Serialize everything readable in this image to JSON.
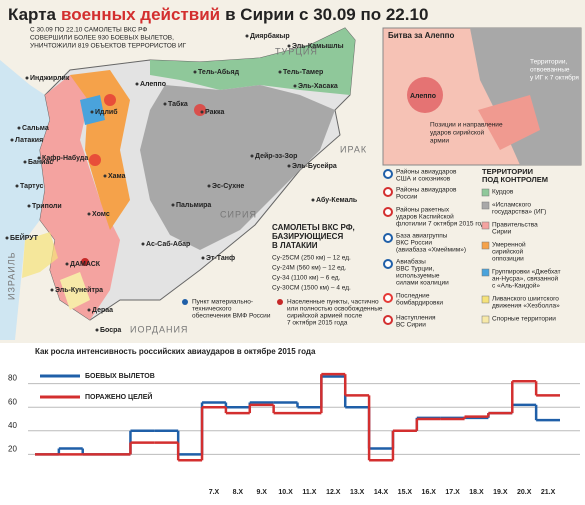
{
  "header": {
    "title_start": "Карта",
    "title_highlight": "военных действий",
    "title_end": "в Сирии с 30.09 по 22.10",
    "summary": [
      "С 30.09 ПО 22.10 САМОЛЕТЫ ВКС РФ",
      "СОВЕРШИЛИ БОЛЕЕ 930 БОЕВЫХ ВЫЛЕТОВ,",
      "УНИЧТОЖИЛИ 819 ОБЪЕКТОВ ТЕРРОРИСТОВ ИГ"
    ]
  },
  "map": {
    "countries": [
      "ТУРЦИЯ",
      "ИРАК",
      "СИРИЯ",
      "ИОРДАНИЯ",
      "ИЗРАИЛЬ"
    ],
    "cities": [
      "Инджирлик",
      "Диярбакыр",
      "Эль-Камышлы",
      "Тель-Абьяд",
      "Тель-Тамер",
      "Эль-Хасака",
      "Ракка",
      "Табка",
      "Алеппо",
      "Идлиб",
      "Латакия",
      "Сальма",
      "Кафр-Набуда",
      "Баниас",
      "Тартус",
      "Триполи",
      "Хама",
      "Хомс",
      "Пальмира",
      "Эс-Сухне",
      "Дейр-эз-Зор",
      "Эль-Бусейра",
      "Абу-Кемаль",
      "Ас-Саб-Абар",
      "Эт-Танф",
      "ДАМАСК",
      "БЕЙРУТ",
      "Эль-Кунейтра",
      "Дераа",
      "Босра"
    ]
  },
  "aleppo_inset": {
    "title": "Битва за Алеппо",
    "city": "Алеппо",
    "regained": [
      "Территории,",
      "отвоеванные",
      "у ИГ к 7 октября"
    ],
    "army": [
      "Позиции и направление",
      "ударов сирийской",
      "армии"
    ]
  },
  "aircraft": {
    "title": [
      "САМОЛЕТЫ ВКС РФ,",
      "БАЗИРУЮЩИЕСЯ",
      "В ЛАТАКИИ"
    ],
    "items": [
      "Су-25СМ (250 км) – 12 ед.",
      "Су-24М (560 км) – 12 ед.",
      "Су-34 (1100 км) – 6 ед.",
      "Су-30СМ (1500 км) – 4 ед."
    ]
  },
  "legend": {
    "markers": [
      [
        "Районы авиаударов",
        "США и союзников"
      ],
      [
        "Районы авиаударов",
        "России"
      ],
      [
        "Районы ракетных",
        "ударов Каспийской",
        "флотилии 7 октября 2015 года"
      ],
      [
        "База авиагруппы",
        "ВКС России",
        "(авиабаза «Хмеймим»)"
      ],
      [
        "Авиабазы",
        "ВВС Турции,",
        "используемые",
        "силами коалиции"
      ],
      [
        "Последние",
        "бомбардировки"
      ],
      [
        "Наступления",
        "ВС Сирии"
      ]
    ],
    "territory_title": [
      "ТЕРРИТОРИИ",
      "ПОД КОНТРОЛЕМ"
    ],
    "territories": [
      {
        "label": [
          "Курдов"
        ],
        "color": "#8fc89a"
      },
      {
        "label": [
          "«Исламского",
          "государства» (ИГ)"
        ],
        "color": "#a8a8a8"
      },
      {
        "label": [
          "Правительства",
          "Сирии"
        ],
        "color": "#f4a3a0"
      },
      {
        "label": [
          "Умеренной",
          "сирийской",
          "оппозиции"
        ],
        "color": "#f5a24a"
      },
      {
        "label": [
          "Группировки «Джебхат",
          "ан-Нусра», связанной",
          "с «Аль-Каидой»"
        ],
        "color": "#4aa3dc"
      },
      {
        "label": [
          "Ливанского шиитского",
          "движения «Хезболла»"
        ],
        "color": "#f5e27a"
      },
      {
        "label": [
          "Спорные территории"
        ],
        "color": "#f7e9a8"
      }
    ]
  },
  "notes": [
    [
      "Пункт материально-",
      "технического",
      "обеспечения ВМФ России"
    ],
    [
      "Населенные пункты, частично",
      "или полностью освобожденные",
      "сирийской армией после",
      "7 октября 2015 года"
    ]
  ],
  "chart_data": {
    "type": "step",
    "title": "Как росла интенсивность российских авиаударов в октябре 2015 года",
    "categories": [
      null,
      null,
      null,
      null,
      null,
      null,
      null,
      "7.X",
      "8.X",
      "9.X",
      "10.X",
      "11.X",
      "12.X",
      "13.X",
      "14.X",
      "15.X",
      "16.X",
      "17.X",
      "18.X",
      "19.X",
      "20.X",
      "21.X"
    ],
    "series": [
      {
        "name": "БОЕВЫХ ВЫЛЕТОВ",
        "color": "#1f5fa8",
        "values": [
          20,
          25,
          20,
          20,
          40,
          40,
          20,
          64,
          60,
          64,
          64,
          60,
          86,
          60,
          25,
          40,
          51,
          51,
          51,
          55,
          62,
          49
        ]
      },
      {
        "name": "ПОРАЖЕНО ЦЕЛЕЙ",
        "color": "#d32f2f",
        "values": [
          20,
          20,
          20,
          20,
          30,
          30,
          15,
          60,
          55,
          62,
          55,
          55,
          88,
          70,
          15,
          40,
          50,
          50,
          52,
          55,
          82,
          70
        ]
      }
    ],
    "ylim": [
      0,
      100
    ],
    "yticks": [
      20,
      40,
      60,
      80
    ],
    "grid": true
  }
}
